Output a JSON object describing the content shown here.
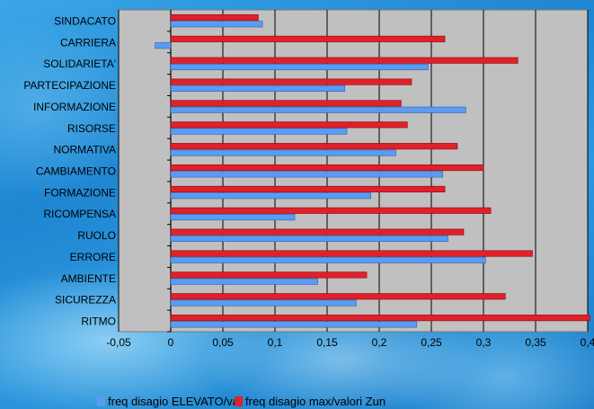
{
  "chart_data": {
    "type": "bar",
    "orientation": "horizontal",
    "categories": [
      "SINDACATO",
      "CARRIERA",
      "SOLIDARIETA'",
      "PARTECIPAZIONE",
      "INFORMAZIONE",
      "RISORSE",
      "NORMATIVA",
      "CAMBIAMENTO",
      "FORMAZIONE",
      "RICOMPENSA",
      "RUOLO",
      "ERRORE",
      "AMBIENTE",
      "SICUREZZA",
      "RITMO"
    ],
    "series": [
      {
        "name": "freq disagio ELEVATO/valori ZUN",
        "color": "#5b9bf0",
        "values": [
          0.088,
          -0.015,
          0.247,
          0.167,
          0.283,
          0.169,
          0.216,
          0.261,
          0.192,
          0.119,
          0.266,
          0.302,
          0.141,
          0.178,
          0.236
        ]
      },
      {
        "name": "freq disagio max/valori Zun",
        "color": "#e0202a",
        "values": [
          0.084,
          0.263,
          0.333,
          0.231,
          0.221,
          0.227,
          0.275,
          0.3,
          0.263,
          0.307,
          0.281,
          0.347,
          0.188,
          0.321,
          0.402
        ]
      }
    ],
    "xlim": [
      -0.05,
      0.4
    ],
    "xticks": [
      "-0,05",
      "0",
      "0,05",
      "0,1",
      "0,15",
      "0,2",
      "0,25",
      "0,3",
      "0,35",
      "0,4"
    ],
    "grid": true,
    "legend_position": "bottom"
  },
  "colors": {
    "plot_background": "#c0c0c0",
    "gridline": "#000000",
    "series_1": "#5b9bf0",
    "series_2": "#e0202a"
  }
}
